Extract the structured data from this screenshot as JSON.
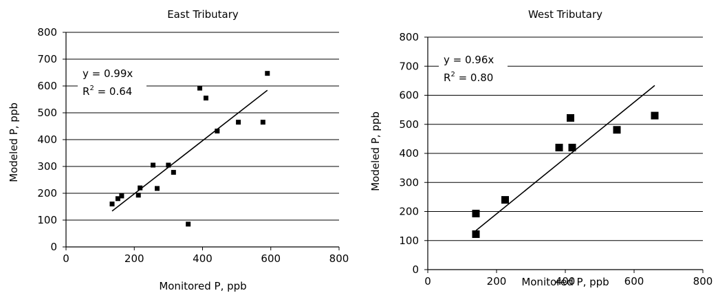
{
  "chart_data": [
    {
      "type": "scatter",
      "title": "East Tributary",
      "xlabel": "Monitored P, ppb",
      "ylabel": "Modeled P, ppb",
      "xlim": [
        0,
        800
      ],
      "ylim": [
        0,
        800
      ],
      "x_ticks": [
        "0",
        "200",
        "400",
        "600",
        "800"
      ],
      "y_ticks": [
        "0",
        "100",
        "200",
        "300",
        "400",
        "500",
        "600",
        "700",
        "800"
      ],
      "grid": "horizontal",
      "equation": "y = 0.99x",
      "r2_prefix": "R",
      "r2_exp": "2",
      "r2_value": " = 0.64",
      "series": [
        {
          "points": [
            [
              135,
              160
            ],
            [
              152,
              180
            ],
            [
              163,
              190
            ],
            [
              212,
              193
            ],
            [
              217,
              220
            ],
            [
              255,
              305
            ],
            [
              267,
              218
            ],
            [
              300,
              305
            ],
            [
              315,
              278
            ],
            [
              358,
              85
            ],
            [
              392,
              592
            ],
            [
              410,
              555
            ],
            [
              443,
              432
            ],
            [
              505,
              465
            ],
            [
              577,
              465
            ],
            [
              590,
              647
            ]
          ]
        }
      ],
      "trendline": {
        "slope": 0.99,
        "x_start": 135,
        "x_end": 590
      }
    },
    {
      "type": "scatter",
      "title": "West Tributary",
      "xlabel": "Monitored P, ppb",
      "ylabel": "Modeled P, ppb",
      "xlim": [
        0,
        800
      ],
      "ylim": [
        0,
        800
      ],
      "x_ticks": [
        "0",
        "200",
        "400",
        "600",
        "800"
      ],
      "y_ticks": [
        "0",
        "100",
        "200",
        "300",
        "400",
        "500",
        "600",
        "700",
        "800"
      ],
      "grid": "horizontal",
      "equation": "y = 0.96x",
      "r2_prefix": "R",
      "r2_exp": "2",
      "r2_value": " = 0.80",
      "series": [
        {
          "points": [
            [
              140,
              122
            ],
            [
              140,
              193
            ],
            [
              225,
              240
            ],
            [
              382,
              420
            ],
            [
              415,
              522
            ],
            [
              420,
              420
            ],
            [
              550,
              481
            ],
            [
              660,
              530
            ]
          ]
        }
      ],
      "trendline": {
        "slope": 0.96,
        "x_start": 140,
        "x_end": 660
      }
    }
  ]
}
